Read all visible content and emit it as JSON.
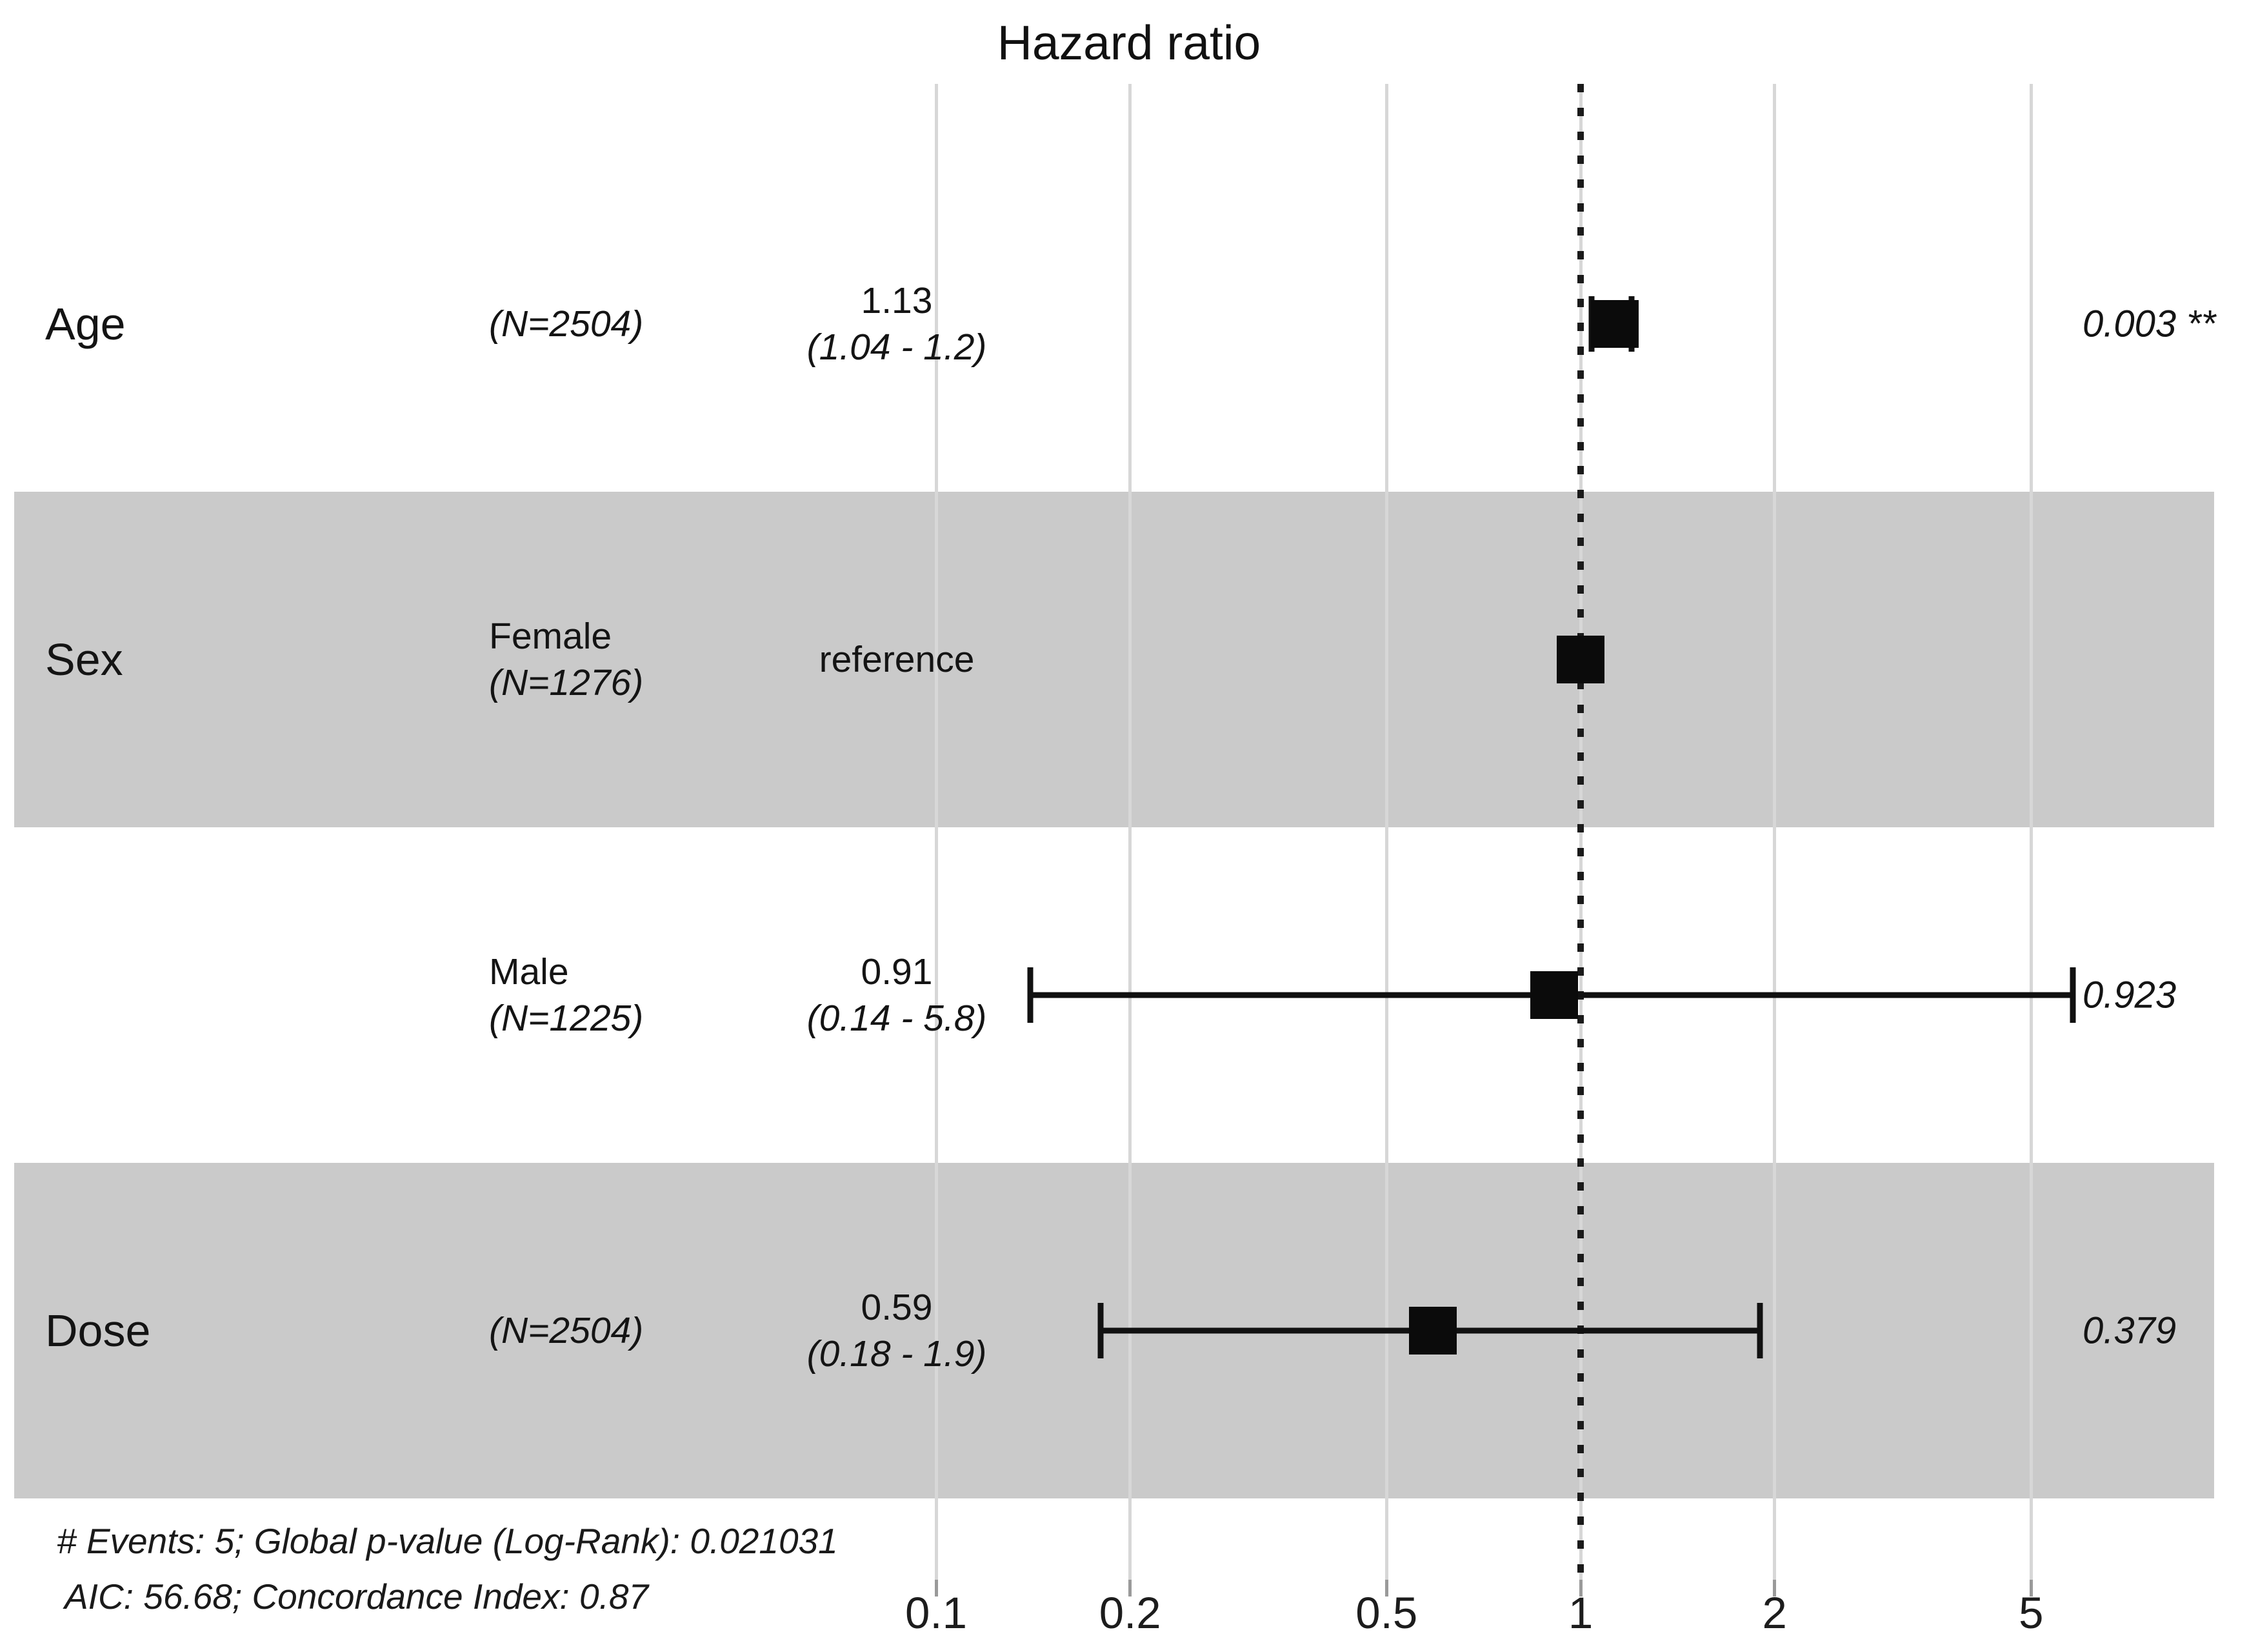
{
  "title": "Hazard ratio",
  "footer": {
    "line1": "# Events: 5; Global p-value (Log-Rank): 0.021031",
    "line2": "AIC: 56.68; Concordance Index: 0.87"
  },
  "chart_data": {
    "type": "forest-plot",
    "title": "Hazard ratio",
    "xscale": "log10",
    "x_ticks": [
      0.1,
      0.2,
      0.5,
      1,
      2,
      5
    ],
    "x_tick_labels": [
      "0.1",
      "0.2",
      "0.5",
      "1",
      "2",
      "5"
    ],
    "reference_line": 1,
    "xlim": [
      0.09,
      9
    ],
    "grid": "vertical-major",
    "colors": {
      "band": "#cacaca",
      "gridline": "#d7d7d7",
      "marker": "#0b0b0b",
      "reference_dotted": "#1a1a1a",
      "text": "#141414"
    },
    "rows": [
      {
        "variable": "Age",
        "level": "",
        "n_label": "(N=2504)",
        "estimate_label": "1.13",
        "ci_label": "(1.04 - 1.2)",
        "hr": 1.13,
        "ci_low": 1.04,
        "ci_high": 1.2,
        "p_label": "0.003 **",
        "reference": false,
        "shaded": false
      },
      {
        "variable": "Sex",
        "level": "Female",
        "n_label": "(N=1276)",
        "estimate_label": "reference",
        "ci_label": "",
        "hr": 1,
        "ci_low": null,
        "ci_high": null,
        "p_label": "",
        "reference": true,
        "shaded": true
      },
      {
        "variable": "",
        "level": "Male",
        "n_label": "(N=1225)",
        "estimate_label": "0.91",
        "ci_label": "(0.14 - 5.8)",
        "hr": 0.91,
        "ci_low": 0.14,
        "ci_high": 5.8,
        "p_label": "0.923",
        "reference": false,
        "shaded": false
      },
      {
        "variable": "Dose",
        "level": "",
        "n_label": "(N=2504)",
        "estimate_label": "0.59",
        "ci_label": "(0.18 - 1.9)",
        "hr": 0.59,
        "ci_low": 0.18,
        "ci_high": 1.9,
        "p_label": "0.379",
        "reference": false,
        "shaded": true
      }
    ],
    "annotations": [
      "# Events: 5; Global p-value (Log-Rank): 0.021031",
      "AIC: 56.68; Concordance Index: 0.87"
    ]
  }
}
